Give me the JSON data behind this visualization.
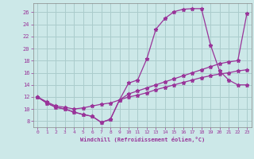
{
  "xlabel": "Windchill (Refroidissement éolien,°C)",
  "background_color": "#cce8e8",
  "grid_color": "#aacccc",
  "line_color": "#993399",
  "xlim": [
    -0.5,
    23.5
  ],
  "ylim": [
    7,
    27.5
  ],
  "yticks": [
    8,
    10,
    12,
    14,
    16,
    18,
    20,
    22,
    24,
    26
  ],
  "xticks": [
    0,
    1,
    2,
    3,
    4,
    5,
    6,
    7,
    8,
    9,
    10,
    11,
    12,
    13,
    14,
    15,
    16,
    17,
    18,
    19,
    20,
    21,
    22,
    23
  ],
  "curve1_x": [
    0,
    1,
    2,
    3,
    4,
    5,
    6,
    7,
    8,
    9,
    10,
    11,
    12,
    13,
    14,
    15,
    16,
    17,
    18,
    19,
    20,
    21,
    22,
    23
  ],
  "curve1_y": [
    12.0,
    11.0,
    10.3,
    10.0,
    9.5,
    9.1,
    8.8,
    7.8,
    8.3,
    11.5,
    14.3,
    14.8,
    18.3,
    23.2,
    25.0,
    26.1,
    26.5,
    26.6,
    26.6,
    20.6,
    16.3,
    14.8,
    14.0,
    14.0
  ],
  "curve2_x": [
    0,
    1,
    2,
    3,
    4,
    5,
    6,
    7,
    8,
    9,
    10,
    11,
    12,
    13,
    14,
    15,
    16,
    17,
    18,
    19,
    20,
    21,
    22,
    23
  ],
  "curve2_y": [
    12.0,
    11.0,
    10.3,
    10.0,
    9.5,
    9.1,
    8.8,
    7.8,
    8.3,
    11.5,
    12.5,
    13.0,
    13.5,
    14.0,
    14.5,
    15.0,
    15.5,
    16.0,
    16.5,
    17.0,
    17.5,
    17.8,
    18.0,
    25.8
  ],
  "curve3_x": [
    0,
    1,
    2,
    3,
    4,
    5,
    6,
    7,
    8,
    9,
    10,
    11,
    12,
    13,
    14,
    15,
    16,
    17,
    18,
    19,
    20,
    21,
    22,
    23
  ],
  "curve3_y": [
    12.0,
    11.2,
    10.5,
    10.3,
    10.0,
    10.2,
    10.5,
    10.8,
    11.0,
    11.5,
    12.0,
    12.3,
    12.7,
    13.2,
    13.6,
    14.0,
    14.4,
    14.8,
    15.2,
    15.5,
    15.8,
    16.0,
    16.3,
    16.5
  ]
}
